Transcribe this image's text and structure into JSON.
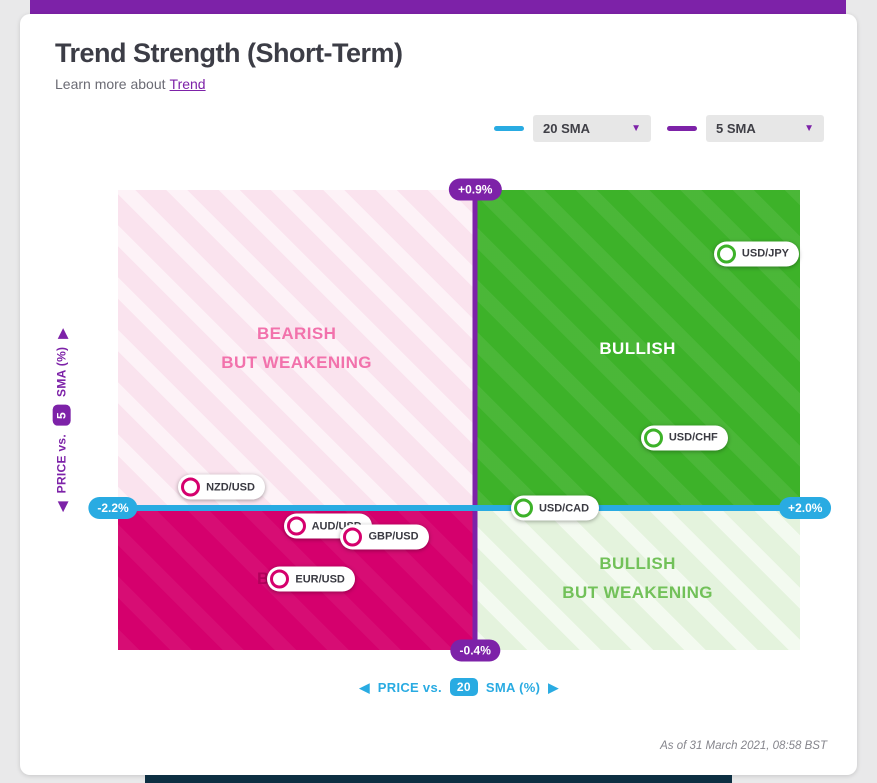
{
  "page": {
    "title": "Trend Strength (Short-Term)",
    "subtitle_prefix": "Learn more about",
    "subtitle_link": "Trend",
    "footnote": "As of 31 March 2021, 08:58 BST"
  },
  "legend": [
    {
      "label": "20 SMA",
      "color": "#29abe2"
    },
    {
      "label": "5 SMA",
      "color": "#7d22a8"
    }
  ],
  "axes": {
    "x": {
      "label_prefix": "PRICE vs.",
      "period": "20",
      "label_suffix": "SMA (%)",
      "min_label": "-2.2%",
      "max_label": "+2.0%"
    },
    "y": {
      "label_prefix": "PRICE vs.",
      "period": "5",
      "label_suffix": "SMA (%)",
      "min_label": "-0.4%",
      "max_label": "+0.9%"
    }
  },
  "quadrants": {
    "top_left": "BEARISH\nBUT WEAKENING",
    "top_right": "BULLISH",
    "bottom_left": "BEARISH",
    "bottom_right": "BULLISH\nBUT WEAKENING"
  },
  "chart_data": {
    "type": "scatter",
    "title": "Trend Strength (Short-Term)",
    "xlabel": "PRICE vs. 20 SMA (%)",
    "ylabel": "PRICE vs. 5 SMA (%)",
    "xlim": [
      -2.2,
      2.0
    ],
    "ylim": [
      -0.4,
      0.9
    ],
    "quadrant_labels": [
      "BEARISH BUT WEAKENING",
      "BULLISH",
      "BEARISH",
      "BULLISH BUT WEAKENING"
    ],
    "points": [
      {
        "label": "USD/JPY",
        "x": 1.55,
        "y": 0.72,
        "trend": "bullish"
      },
      {
        "label": "USD/CHF",
        "x": 1.1,
        "y": 0.2,
        "trend": "bullish"
      },
      {
        "label": "USD/CAD",
        "x": 0.3,
        "y": 0.0,
        "trend": "bullish"
      },
      {
        "label": "NZD/USD",
        "x": -1.75,
        "y": 0.06,
        "trend": "bearish"
      },
      {
        "label": "AUD/USD",
        "x": -1.1,
        "y": -0.05,
        "trend": "bearish"
      },
      {
        "label": "GBP/USD",
        "x": -0.75,
        "y": -0.08,
        "trend": "bearish"
      },
      {
        "label": "EUR/USD",
        "x": -1.2,
        "y": -0.2,
        "trend": "bearish"
      }
    ]
  },
  "colors": {
    "purple": "#7d22a8",
    "blue": "#29abe2",
    "magenta": "#d5006d",
    "green": "#3db229",
    "light_pink": "#fae3ee",
    "light_green": "#e4f3dd",
    "pink_text": "#f272ac",
    "green_text": "#72c159",
    "bearish_text": "#b3005c",
    "dark_bar": "#0d2f42"
  }
}
